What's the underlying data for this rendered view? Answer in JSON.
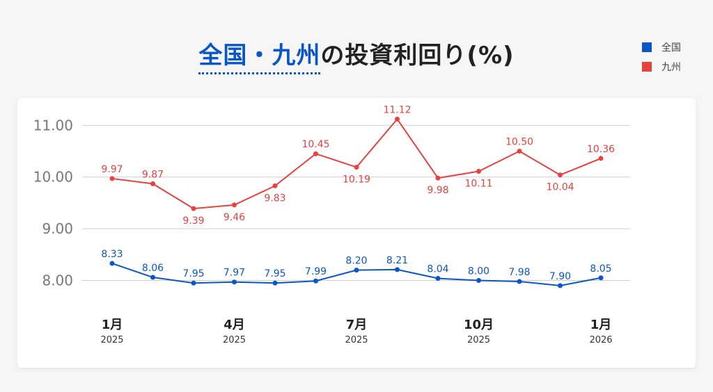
{
  "title": {
    "highlight": "全国・九州",
    "rest": "の投資利回り(%)"
  },
  "legend": [
    {
      "name": "全国",
      "color": "#0a56c9"
    },
    {
      "name": "九州",
      "color": "#e8413e"
    }
  ],
  "chart_data": {
    "type": "line",
    "title": "全国・九州の投資利回り(%)",
    "x": [
      "2025-01",
      "2025-02",
      "2025-03",
      "2025-04",
      "2025-05",
      "2025-06",
      "2025-07",
      "2025-08",
      "2025-09",
      "2025-10",
      "2025-11",
      "2025-12",
      "2026-01"
    ],
    "x_ticks": [
      {
        "index": 0,
        "month": "1月",
        "year": "2025"
      },
      {
        "index": 3,
        "month": "4月",
        "year": "2025"
      },
      {
        "index": 6,
        "month": "7月",
        "year": "2025"
      },
      {
        "index": 9,
        "month": "10月",
        "year": "2025"
      },
      {
        "index": 12,
        "month": "1月",
        "year": "2026"
      }
    ],
    "y_ticks": [
      "8.00",
      "9.00",
      "10.00",
      "11.00"
    ],
    "ylim": [
      7.5,
      11.5
    ],
    "grid": true,
    "legend_position": "top-right",
    "series": [
      {
        "name": "全国",
        "color": "#0a56c9",
        "values": [
          8.33,
          8.06,
          7.95,
          7.97,
          7.95,
          7.99,
          8.2,
          8.21,
          8.04,
          8.0,
          7.98,
          7.9,
          8.05
        ],
        "labels": [
          "8.33",
          "8.06",
          "7.95",
          "7.97",
          "7.95",
          "7.99",
          "8.20",
          "8.21",
          "8.04",
          "8.00",
          "7.98",
          "7.90",
          "8.05"
        ],
        "label_side": [
          "above",
          "above",
          "above",
          "above",
          "above",
          "above",
          "above",
          "above",
          "above",
          "above",
          "above",
          "above",
          "above"
        ]
      },
      {
        "name": "九州",
        "color": "#e8413e",
        "values": [
          9.97,
          9.87,
          9.39,
          9.46,
          9.83,
          10.45,
          10.19,
          11.12,
          9.98,
          10.11,
          10.5,
          10.04,
          10.36
        ],
        "labels": [
          "9.97",
          "9.87",
          "9.39",
          "9.46",
          "9.83",
          "10.45",
          "10.19",
          "11.12",
          "9.98",
          "10.11",
          "10.50",
          "10.04",
          "10.36"
        ],
        "label_side": [
          "above",
          "above",
          "below",
          "below",
          "below",
          "above",
          "below",
          "above",
          "below",
          "below",
          "above",
          "below",
          "above"
        ]
      }
    ]
  }
}
